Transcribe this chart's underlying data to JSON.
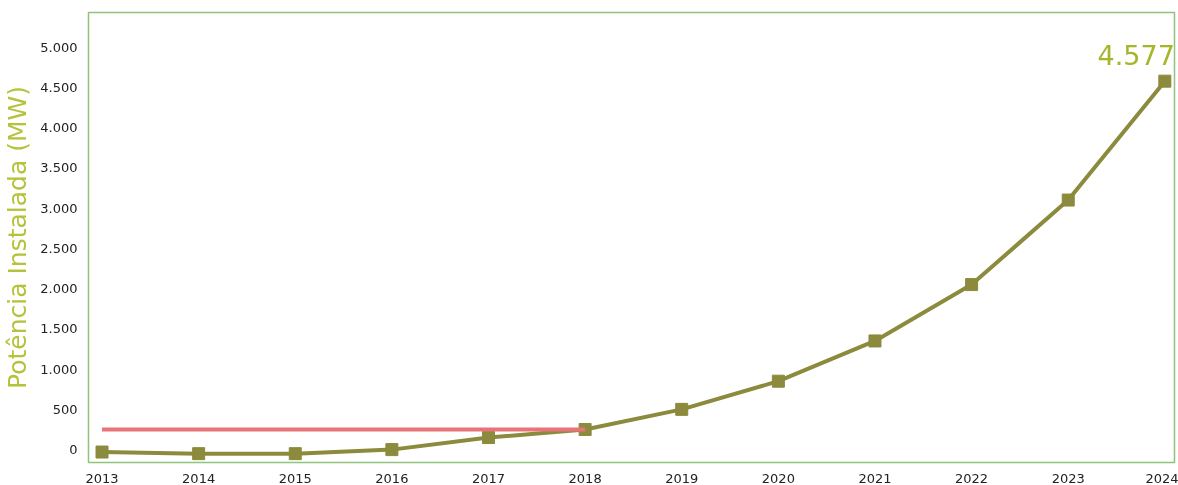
{
  "chart_data": {
    "type": "line",
    "ylabel": "Potência Instalada (MW)",
    "categories": [
      "2013",
      "2014",
      "2015",
      "2016",
      "2017",
      "2018",
      "2019",
      "2020",
      "2021",
      "2022",
      "2023",
      "2024"
    ],
    "series": [
      {
        "color": "#e8747a",
        "marker": "none",
        "values": [
          250,
          250,
          250,
          250,
          250,
          250,
          null,
          null,
          null,
          null,
          null,
          null
        ]
      },
      {
        "color": "#8c8a3c",
        "marker": "square",
        "values": [
          -30,
          -50,
          -50,
          0,
          150,
          250,
          500,
          850,
          1350,
          2050,
          3100,
          4577
        ],
        "value_labels": [
          null,
          null,
          null,
          null,
          null,
          null,
          null,
          null,
          null,
          null,
          null,
          "4.577"
        ]
      }
    ],
    "ylim": [
      -160,
      5430
    ],
    "yticks": [
      0,
      {
        "value": 500,
        "label": "500"
      },
      {
        "value": 1000,
        "label": "1.000"
      },
      {
        "value": 1500,
        "label": "1.500"
      },
      {
        "value": 2000,
        "label": "2.000"
      },
      {
        "value": 2500,
        "label": "2.500"
      },
      {
        "value": 3000,
        "label": "3.000"
      },
      {
        "value": 3500,
        "label": "3.500"
      },
      {
        "value": 4000,
        "label": "4.000"
      },
      {
        "value": 4500,
        "label": "4.500"
      },
      {
        "value": 5000,
        "label": "5.000"
      }
    ],
    "grid": false
  }
}
